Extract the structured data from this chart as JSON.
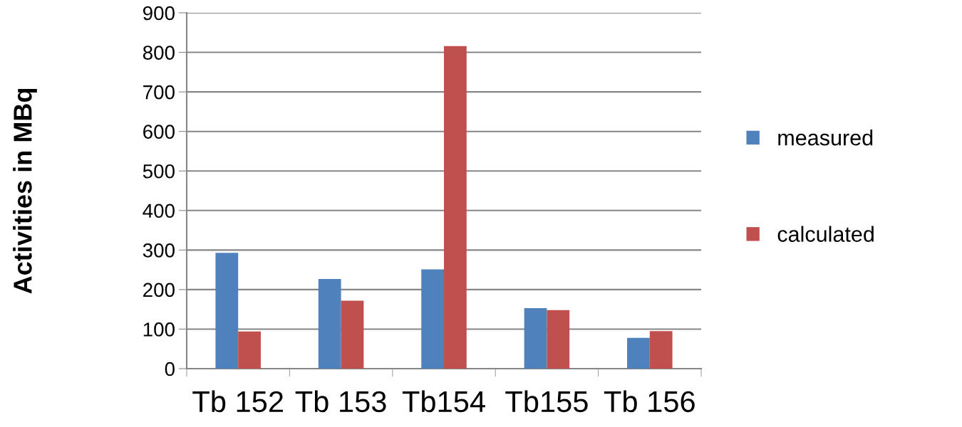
{
  "chart_data": {
    "type": "bar",
    "ylabel": "Activities in MBq",
    "categories": [
      "Tb 152",
      "Tb 153",
      "Tb154",
      "Tb155",
      "Tb 156"
    ],
    "series": [
      {
        "name": "measured",
        "color": "#4f81bd",
        "values": [
          293,
          227,
          251,
          153,
          78
        ]
      },
      {
        "name": "calculated",
        "color": "#c0504d",
        "values": [
          94,
          172,
          816,
          148,
          95
        ]
      }
    ],
    "ylim": [
      0,
      900
    ],
    "yticks": [
      0,
      100,
      200,
      300,
      400,
      500,
      600,
      700,
      800,
      900
    ],
    "grid": "y",
    "legend": "right"
  }
}
